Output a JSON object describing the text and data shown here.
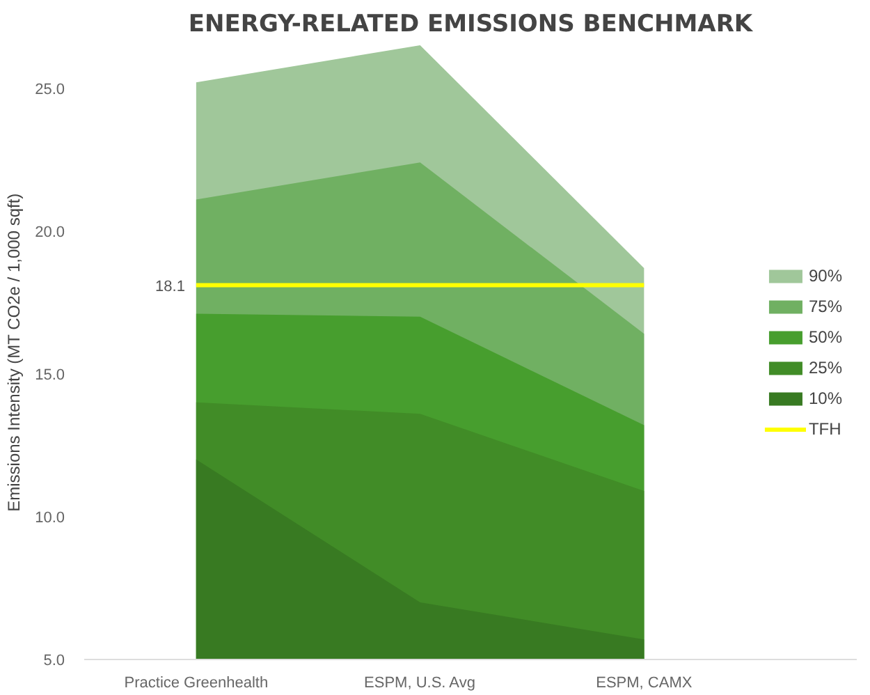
{
  "chart_data": {
    "type": "area",
    "title": "ENERGY-RELATED EMISSIONS BENCHMARK",
    "ylabel": "Emissions Intensity (MT CO2e / 1,000 sqft)",
    "categories": [
      "Practice Greenhealth",
      "ESPM, U.S. Avg",
      "ESPM, CAMX"
    ],
    "series": [
      {
        "name": "90%",
        "color": "#a0c79a",
        "values": [
          25.2,
          26.5,
          18.7
        ]
      },
      {
        "name": "75%",
        "color": "#70b062",
        "values": [
          21.1,
          22.4,
          16.4
        ]
      },
      {
        "name": "50%",
        "color": "#479e2e",
        "values": [
          17.1,
          17.0,
          13.2
        ]
      },
      {
        "name": "25%",
        "color": "#418c27",
        "values": [
          14.0,
          13.6,
          10.9
        ]
      },
      {
        "name": "10%",
        "color": "#387a22",
        "values": [
          12.0,
          7.0,
          5.7
        ]
      }
    ],
    "ref_lines": [
      {
        "axis": "y",
        "value": 18.1,
        "label": "TFH",
        "color": "#ffff00"
      }
    ],
    "annotations": [
      {
        "text": "18.1",
        "x": "Practice Greenhealth",
        "y": 18.1
      }
    ],
    "ylim": [
      5,
      26.5
    ],
    "yticks": [
      {
        "value": 5,
        "label": "5.0"
      },
      {
        "value": 10,
        "label": "10.0"
      },
      {
        "value": 15,
        "label": "15.0"
      },
      {
        "value": 20,
        "label": "20.0"
      },
      {
        "value": 25,
        "label": "25.0"
      }
    ],
    "grid": false,
    "legend": "right"
  }
}
